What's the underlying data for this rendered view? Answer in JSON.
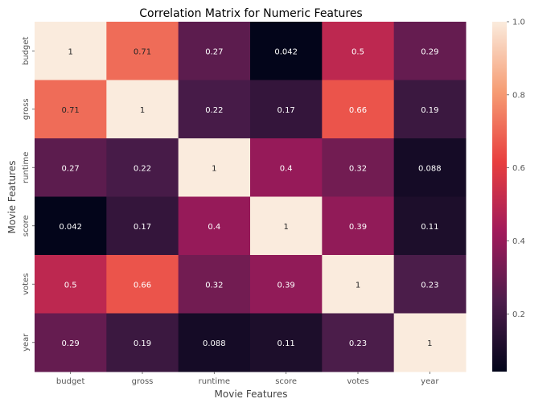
{
  "chart_data": {
    "type": "heatmap",
    "title": "Correlation Matrix for Numeric Features",
    "xlabel": "Movie Features",
    "ylabel": "Movie Features",
    "x_categories": [
      "budget",
      "gross",
      "runtime",
      "score",
      "votes",
      "year"
    ],
    "y_categories": [
      "budget",
      "gross",
      "runtime",
      "score",
      "votes",
      "year"
    ],
    "values": [
      [
        1,
        0.71,
        0.27,
        0.042,
        0.5,
        0.29
      ],
      [
        0.71,
        1,
        0.22,
        0.17,
        0.66,
        0.19
      ],
      [
        0.27,
        0.22,
        1,
        0.4,
        0.32,
        0.088
      ],
      [
        0.042,
        0.17,
        0.4,
        1,
        0.39,
        0.11
      ],
      [
        0.5,
        0.66,
        0.32,
        0.39,
        1,
        0.23
      ],
      [
        0.29,
        0.19,
        0.088,
        0.11,
        0.23,
        1
      ]
    ],
    "annotations": [
      [
        "1",
        "0.71",
        "0.27",
        "0.042",
        "0.5",
        "0.29"
      ],
      [
        "0.71",
        "1",
        "0.22",
        "0.17",
        "0.66",
        "0.19"
      ],
      [
        "0.27",
        "0.22",
        "1",
        "0.4",
        "0.32",
        "0.088"
      ],
      [
        "0.042",
        "0.17",
        "0.4",
        "1",
        "0.39",
        "0.11"
      ],
      [
        "0.5",
        "0.66",
        "0.32",
        "0.39",
        "1",
        "0.23"
      ],
      [
        "0.29",
        "0.19",
        "0.088",
        "0.11",
        "0.23",
        "1"
      ]
    ],
    "colorbar": {
      "vmin": 0.042,
      "vmax": 1,
      "ticks": [
        0.2,
        0.4,
        0.6,
        0.8,
        1.0
      ],
      "tick_labels": [
        "0.2",
        "0.4",
        "0.6",
        "0.8",
        "1.0"
      ],
      "colormap": "rocket",
      "colormap_stops": [
        "#03051a",
        "#4c1d4b",
        "#a11a5b",
        "#e83f3f",
        "#f69c73",
        "#faebdd"
      ]
    }
  }
}
